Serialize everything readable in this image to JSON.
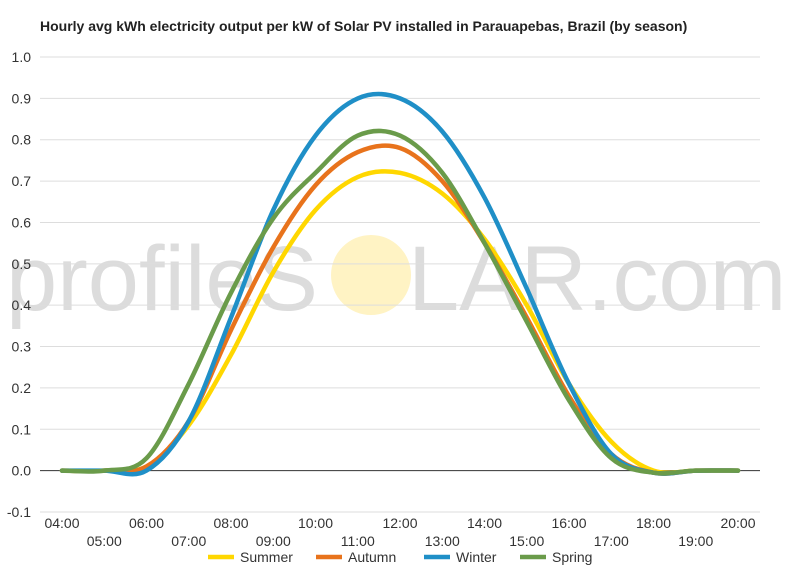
{
  "chart_data": {
    "type": "line",
    "title": "Hourly avg kWh electricity output per kW of Solar PV installed in Parauapebas, Brazil (by season)",
    "xlabel": "",
    "ylabel": "",
    "ylim": [
      -0.1,
      1.0
    ],
    "yticks": [
      "1.0",
      "0.9",
      "0.8",
      "0.7",
      "0.6",
      "0.5",
      "0.4",
      "0.3",
      "0.2",
      "0.1",
      "0.0",
      "-0.1"
    ],
    "x": [
      "04:00",
      "05:00",
      "06:00",
      "07:00",
      "08:00",
      "09:00",
      "10:00",
      "11:00",
      "12:00",
      "13:00",
      "14:00",
      "15:00",
      "16:00",
      "17:00",
      "18:00",
      "19:00",
      "20:00"
    ],
    "grid": true,
    "legend_position": "bottom",
    "series": [
      {
        "name": "Summer",
        "color": "#FFD700",
        "values": [
          0,
          0,
          0.01,
          0.11,
          0.28,
          0.48,
          0.63,
          0.71,
          0.72,
          0.67,
          0.56,
          0.4,
          0.21,
          0.07,
          0.0,
          0,
          0
        ]
      },
      {
        "name": "Autumn",
        "color": "#E8731C",
        "values": [
          0,
          0,
          0.01,
          0.12,
          0.34,
          0.54,
          0.69,
          0.77,
          0.78,
          0.7,
          0.55,
          0.37,
          0.18,
          0.04,
          -0.005,
          0,
          0
        ]
      },
      {
        "name": "Winter",
        "color": "#1F8FC7",
        "values": [
          0,
          0,
          0,
          0.12,
          0.37,
          0.63,
          0.81,
          0.9,
          0.9,
          0.82,
          0.66,
          0.44,
          0.21,
          0.04,
          -0.005,
          0,
          0
        ]
      },
      {
        "name": "Spring",
        "color": "#6A9B4A",
        "values": [
          0,
          0,
          0.03,
          0.21,
          0.43,
          0.61,
          0.72,
          0.81,
          0.81,
          0.72,
          0.55,
          0.36,
          0.17,
          0.03,
          -0.005,
          0,
          0
        ]
      }
    ]
  },
  "watermark": {
    "left": "profileS",
    "right": "LAR.com",
    "sun_color": "#FFF3C4"
  }
}
